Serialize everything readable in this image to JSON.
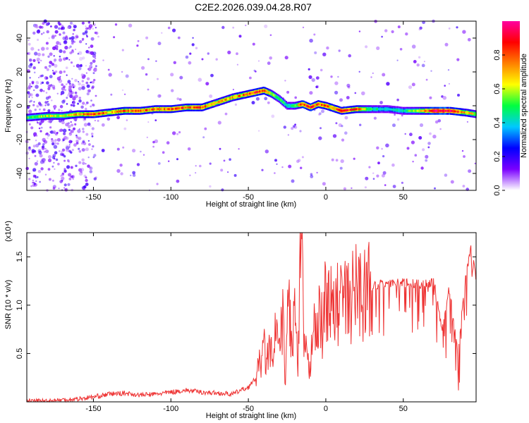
{
  "figure": {
    "title": "C2E2.2026.039.04.28.R07"
  },
  "chart_data": [
    {
      "type": "heatmap",
      "xlabel": "Height of straight line (km)",
      "ylabel": "Frequency (Hz)",
      "xlim": [
        -193,
        97
      ],
      "ylim": [
        -50,
        50
      ],
      "x_ticks": [
        -150,
        -100,
        -50,
        0,
        50
      ],
      "x_tick_labels": [
        "-150",
        "-100",
        "-50",
        "0",
        "50"
      ],
      "y_ticks": [
        40,
        20,
        0,
        -20,
        -40
      ],
      "y_tick_labels": [
        "40",
        "20",
        "0",
        "-20",
        "-40"
      ],
      "colorbar": {
        "label": "Normalized spectral amplitude",
        "range": [
          0.0,
          1.0
        ],
        "ticks": [
          0.0,
          0.2,
          0.4,
          0.6,
          0.8
        ],
        "tick_labels": [
          "0.0",
          "0.2",
          "0.4",
          "0.6",
          "0.8"
        ],
        "colormap": [
          "#ffffff",
          "#7a00ff",
          "#0000ff",
          "#00c8ff",
          "#00ff40",
          "#ffff00",
          "#ff8000",
          "#ff0000",
          "#ff00a0"
        ]
      },
      "ridge": {
        "x": [
          -193,
          -180,
          -170,
          -160,
          -150,
          -140,
          -130,
          -120,
          -110,
          -100,
          -90,
          -80,
          -70,
          -60,
          -55,
          -50,
          -45,
          -40,
          -35,
          -30,
          -25,
          -20,
          -15,
          -10,
          -5,
          0,
          10,
          20,
          30,
          40,
          50,
          60,
          70,
          80,
          90,
          97
        ],
        "freq": [
          -7,
          -6,
          -6,
          -5,
          -5,
          -4,
          -3,
          -3,
          -2,
          -2,
          -1,
          -1,
          2,
          5,
          6,
          7,
          8,
          9,
          7,
          4,
          0,
          0,
          1,
          -1,
          1,
          0,
          -3,
          -2,
          -2,
          -2,
          -3,
          -3,
          -3,
          -3,
          -4,
          -5
        ],
        "amplitude": [
          0.5,
          0.6,
          0.6,
          0.7,
          0.85,
          0.7,
          0.8,
          0.8,
          0.75,
          0.8,
          0.8,
          0.8,
          0.7,
          0.7,
          0.75,
          0.8,
          0.85,
          0.8,
          0.6,
          0.5,
          0.45,
          0.5,
          0.85,
          0.85,
          0.8,
          0.75,
          0.85,
          0.8,
          0.45,
          0.4,
          0.45,
          0.6,
          0.95,
          0.95,
          0.7,
          0.6
        ]
      }
    },
    {
      "type": "line",
      "xlabel": "Height of straight line (km)",
      "ylabel": "SNR (10 * v/v)",
      "y_multiplier_label": "(x10⁴)",
      "color": "#ee3333",
      "xlim": [
        -193,
        97
      ],
      "ylim": [
        0,
        1.75
      ],
      "x_ticks": [
        -150,
        -100,
        -50,
        0,
        50
      ],
      "x_tick_labels": [
        "-150",
        "-100",
        "-50",
        "0",
        "50"
      ],
      "y_ticks": [
        0.5,
        1.0,
        1.5
      ],
      "y_tick_labels": [
        "0.5",
        "1.0",
        "1.5"
      ],
      "series": [
        {
          "x": [
            -193,
            -180,
            -170,
            -160,
            -150,
            -140,
            -130,
            -120,
            -110,
            -100,
            -90,
            -80,
            -70,
            -60,
            -55,
            -50,
            -45,
            -40,
            -38,
            -36,
            -34,
            -32,
            -30,
            -28,
            -26,
            -24,
            -22,
            -20,
            -18,
            -16,
            -14,
            -12,
            -10,
            -8,
            -6,
            -4,
            -2,
            0,
            5,
            10,
            15,
            20,
            25,
            30,
            40,
            50,
            60,
            70,
            75,
            80,
            85,
            90,
            94,
            97
          ],
          "y": [
            0.01,
            0.01,
            0.02,
            0.03,
            0.05,
            0.08,
            0.09,
            0.07,
            0.08,
            0.1,
            0.12,
            0.1,
            0.09,
            0.08,
            0.12,
            0.15,
            0.25,
            0.55,
            0.4,
            0.6,
            0.3,
            0.85,
            0.45,
            0.9,
            0.2,
            1.2,
            0.5,
            1.0,
            0.3,
            1.72,
            0.6,
            0.4,
            0.3,
            1.2,
            0.5,
            1.0,
            0.7,
            1.15,
            0.9,
            1.1,
            1.0,
            1.2,
            1.1,
            1.26,
            1.28,
            1.28,
            1.27,
            1.29,
            0.8,
            1.25,
            0.55,
            1.3,
            1.66,
            1.3
          ]
        }
      ]
    }
  ]
}
